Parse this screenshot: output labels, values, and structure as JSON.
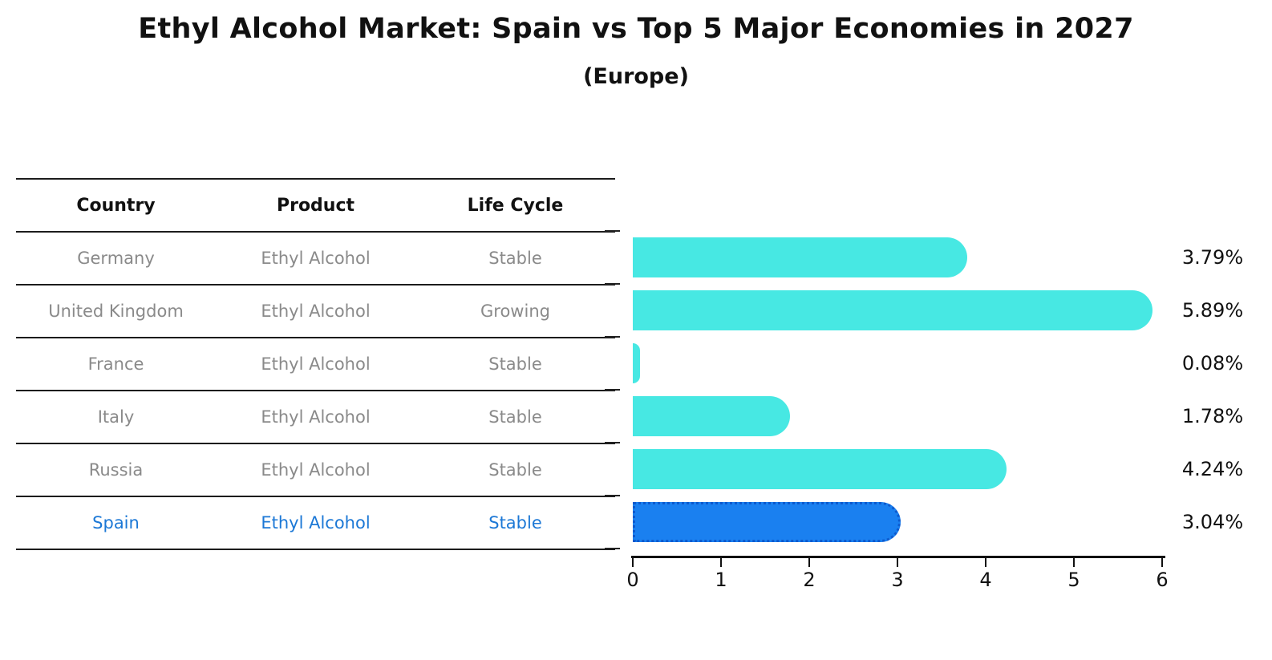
{
  "title": "Ethyl Alcohol Market: Spain vs Top 5 Major Economies in 2027",
  "subtitle": "(Europe)",
  "table": {
    "headers": [
      "Country",
      "Product",
      "Life Cycle"
    ],
    "rows": [
      {
        "country": "Germany",
        "product": "Ethyl Alcohol",
        "life_cycle": "Stable",
        "highlight": false
      },
      {
        "country": "United Kingdom",
        "product": "Ethyl Alcohol",
        "life_cycle": "Growing",
        "highlight": false
      },
      {
        "country": "France",
        "product": "Ethyl Alcohol",
        "life_cycle": "Stable",
        "highlight": false
      },
      {
        "country": "Italy",
        "product": "Ethyl Alcohol",
        "life_cycle": "Stable",
        "highlight": false
      },
      {
        "country": "Russia",
        "product": "Ethyl Alcohol",
        "life_cycle": "Stable",
        "highlight": false
      },
      {
        "country": "Spain",
        "product": "Ethyl Alcohol",
        "life_cycle": "Stable",
        "highlight": true
      }
    ]
  },
  "chart_data": {
    "type": "bar",
    "orientation": "horizontal",
    "categories": [
      "Germany",
      "United Kingdom",
      "France",
      "Italy",
      "Russia",
      "Spain"
    ],
    "values": [
      3.79,
      5.89,
      0.08,
      1.78,
      4.24,
      3.04
    ],
    "value_labels": [
      "3.79%",
      "5.89%",
      "0.08%",
      "1.78%",
      "4.24%",
      "3.04%"
    ],
    "xlim": [
      0,
      6
    ],
    "xticks": [
      0,
      1,
      2,
      3,
      4,
      5,
      6
    ],
    "grid": false,
    "legend": "none",
    "bar_color": "#47E8E3",
    "highlight_index": 5,
    "highlight_color": "#1A80F0",
    "highlight_border_color": "#0d5ace",
    "value_label_color": "#111111",
    "text_highlight_color": "#1c78d6"
  }
}
